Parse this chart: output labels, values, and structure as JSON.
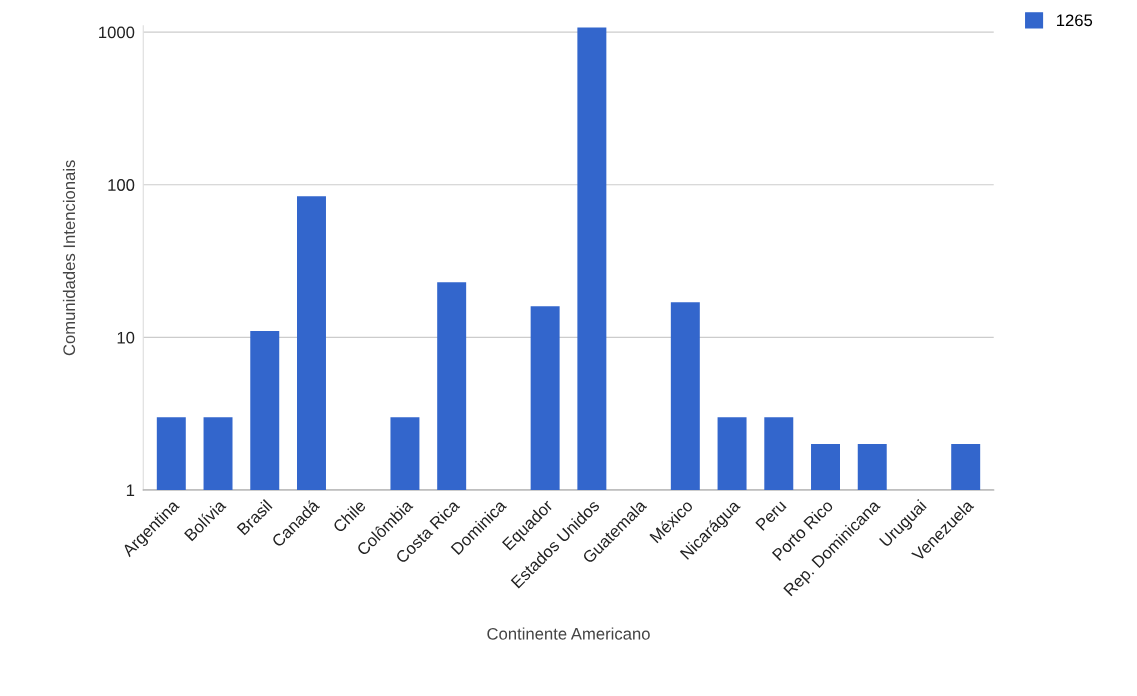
{
  "chart_data": {
    "type": "bar",
    "xlabel": "Continente Americano",
    "ylabel": "Comunidades Intencionais",
    "categories": [
      "Argentina",
      "Bolívia",
      "Brasil",
      "Canadá",
      "Chile",
      "Colômbia",
      "Costa Rica",
      "Dominica",
      "Equador",
      "Estados Unidos",
      "Guatemala",
      "México",
      "Nicarágua",
      "Peru",
      "Porto Rico",
      "Rep. Dominicana",
      "Uruguai",
      "Venezuela"
    ],
    "series": [
      {
        "name": "1265",
        "color": "#3366cc",
        "values": [
          3,
          3,
          11,
          84,
          null,
          3,
          23,
          null,
          16,
          1070,
          null,
          17,
          3,
          3,
          2,
          2,
          null,
          2
        ]
      }
    ],
    "log": true,
    "ylim": [
      1,
      1100
    ],
    "yticks": [
      1,
      10,
      100,
      1000
    ],
    "grid": "y",
    "legend": "top right"
  }
}
